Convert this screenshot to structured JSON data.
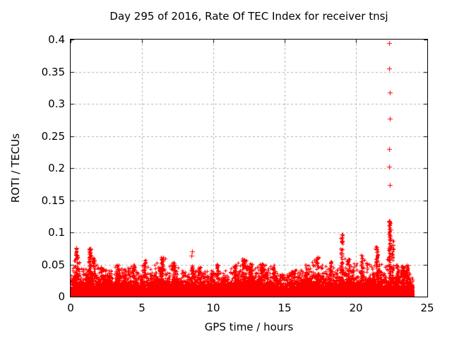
{
  "window": {
    "background": "#ffffff"
  },
  "chart_data": {
    "type": "scatter",
    "title": "Day 295 of 2016, Rate Of TEC Index for receiver tnsj",
    "xlabel": "GPS time / hours",
    "ylabel": "ROTI / TECUs",
    "xlim": [
      0,
      25
    ],
    "ylim": [
      0,
      0.4
    ],
    "xtick_values": [
      0,
      5,
      10,
      15,
      20,
      25
    ],
    "xtick_labels": [
      "0",
      "5",
      "10",
      "15",
      "20",
      "25"
    ],
    "ytick_values": [
      0,
      0.05,
      0.1,
      0.15,
      0.2,
      0.25,
      0.3,
      0.35,
      0.4
    ],
    "ytick_labels": [
      "0",
      "0.05",
      "0.1",
      "0.15",
      "0.2",
      "0.25",
      "0.3",
      "0.35",
      "0.4"
    ],
    "grid": "dotted gridlines at every major tick, both axes",
    "legend": "none",
    "marker": "plus",
    "marker_color": "#ff0000",
    "grid_color": "#b0b0b0",
    "axis_color": "#000000",
    "data_time_range_hours": [
      0,
      24
    ],
    "dense_band_max_tecus": 0.02,
    "approx_point_count": 15000,
    "envelope_hour_max": [
      [
        0.0,
        0.05
      ],
      [
        0.4,
        0.076
      ],
      [
        0.8,
        0.045
      ],
      [
        1.35,
        0.075
      ],
      [
        1.8,
        0.05
      ],
      [
        2.2,
        0.048
      ],
      [
        2.7,
        0.042
      ],
      [
        3.3,
        0.05
      ],
      [
        3.8,
        0.045
      ],
      [
        4.4,
        0.05
      ],
      [
        4.8,
        0.04
      ],
      [
        5.2,
        0.057
      ],
      [
        5.7,
        0.045
      ],
      [
        6.4,
        0.063
      ],
      [
        7.2,
        0.055
      ],
      [
        7.7,
        0.045
      ],
      [
        8.2,
        0.04
      ],
      [
        8.7,
        0.045
      ],
      [
        9.2,
        0.046
      ],
      [
        9.7,
        0.04
      ],
      [
        10.3,
        0.051
      ],
      [
        10.8,
        0.045
      ],
      [
        11.5,
        0.05
      ],
      [
        12.1,
        0.06
      ],
      [
        12.6,
        0.052
      ],
      [
        13.0,
        0.048
      ],
      [
        13.4,
        0.052
      ],
      [
        14.0,
        0.048
      ],
      [
        14.5,
        0.04
      ],
      [
        15.0,
        0.034
      ],
      [
        15.5,
        0.04
      ],
      [
        16.0,
        0.044
      ],
      [
        16.5,
        0.05
      ],
      [
        17.0,
        0.055
      ],
      [
        17.3,
        0.062
      ],
      [
        17.8,
        0.05
      ],
      [
        18.2,
        0.055
      ],
      [
        18.7,
        0.05
      ],
      [
        19.0,
        0.08
      ],
      [
        19.5,
        0.06
      ],
      [
        20.0,
        0.05
      ],
      [
        20.4,
        0.066
      ],
      [
        21.0,
        0.05
      ],
      [
        21.45,
        0.078
      ],
      [
        21.8,
        0.05
      ],
      [
        22.1,
        0.05
      ],
      [
        22.35,
        0.09
      ],
      [
        22.6,
        0.06
      ],
      [
        22.9,
        0.05
      ],
      [
        23.3,
        0.048
      ],
      [
        23.6,
        0.05
      ],
      [
        23.9,
        0.034
      ],
      [
        24.0,
        0.02
      ]
    ],
    "peak_clusters": [
      [
        0.4,
        0.076,
        20
      ],
      [
        1.35,
        0.075,
        45
      ],
      [
        1.6,
        0.06,
        25
      ],
      [
        2.2,
        0.048,
        20
      ],
      [
        3.3,
        0.05,
        20
      ],
      [
        4.4,
        0.05,
        20
      ],
      [
        5.2,
        0.057,
        25
      ],
      [
        6.4,
        0.063,
        40
      ],
      [
        7.2,
        0.055,
        25
      ],
      [
        8.5,
        0.05,
        15
      ],
      [
        9.0,
        0.046,
        15
      ],
      [
        10.3,
        0.051,
        20
      ],
      [
        11.5,
        0.05,
        20
      ],
      [
        12.1,
        0.06,
        30
      ],
      [
        12.6,
        0.052,
        20
      ],
      [
        13.4,
        0.052,
        20
      ],
      [
        14.2,
        0.05,
        20
      ],
      [
        15.5,
        0.04,
        15
      ],
      [
        16.5,
        0.05,
        20
      ],
      [
        17.3,
        0.062,
        30
      ],
      [
        18.2,
        0.055,
        25
      ],
      [
        19.0,
        0.097,
        40
      ],
      [
        19.5,
        0.06,
        20
      ],
      [
        20.4,
        0.066,
        30
      ],
      [
        21.45,
        0.078,
        40
      ],
      [
        22.35,
        0.118,
        70
      ],
      [
        22.55,
        0.09,
        30
      ],
      [
        22.9,
        0.05,
        25
      ],
      [
        23.3,
        0.05,
        25
      ],
      [
        23.6,
        0.05,
        20
      ]
    ],
    "outlier_points": [
      [
        0.41,
        0.076
      ],
      [
        0.45,
        0.064
      ],
      [
        1.38,
        0.075
      ],
      [
        8.47,
        0.064
      ],
      [
        8.52,
        0.07
      ],
      [
        19.0,
        0.097
      ],
      [
        21.4,
        0.075
      ],
      [
        22.35,
        0.395
      ],
      [
        22.35,
        0.355
      ],
      [
        22.36,
        0.318
      ],
      [
        22.36,
        0.277
      ],
      [
        22.35,
        0.23
      ],
      [
        22.35,
        0.202
      ],
      [
        22.36,
        0.174
      ],
      [
        22.35,
        0.118
      ],
      [
        22.42,
        0.104
      ]
    ]
  }
}
